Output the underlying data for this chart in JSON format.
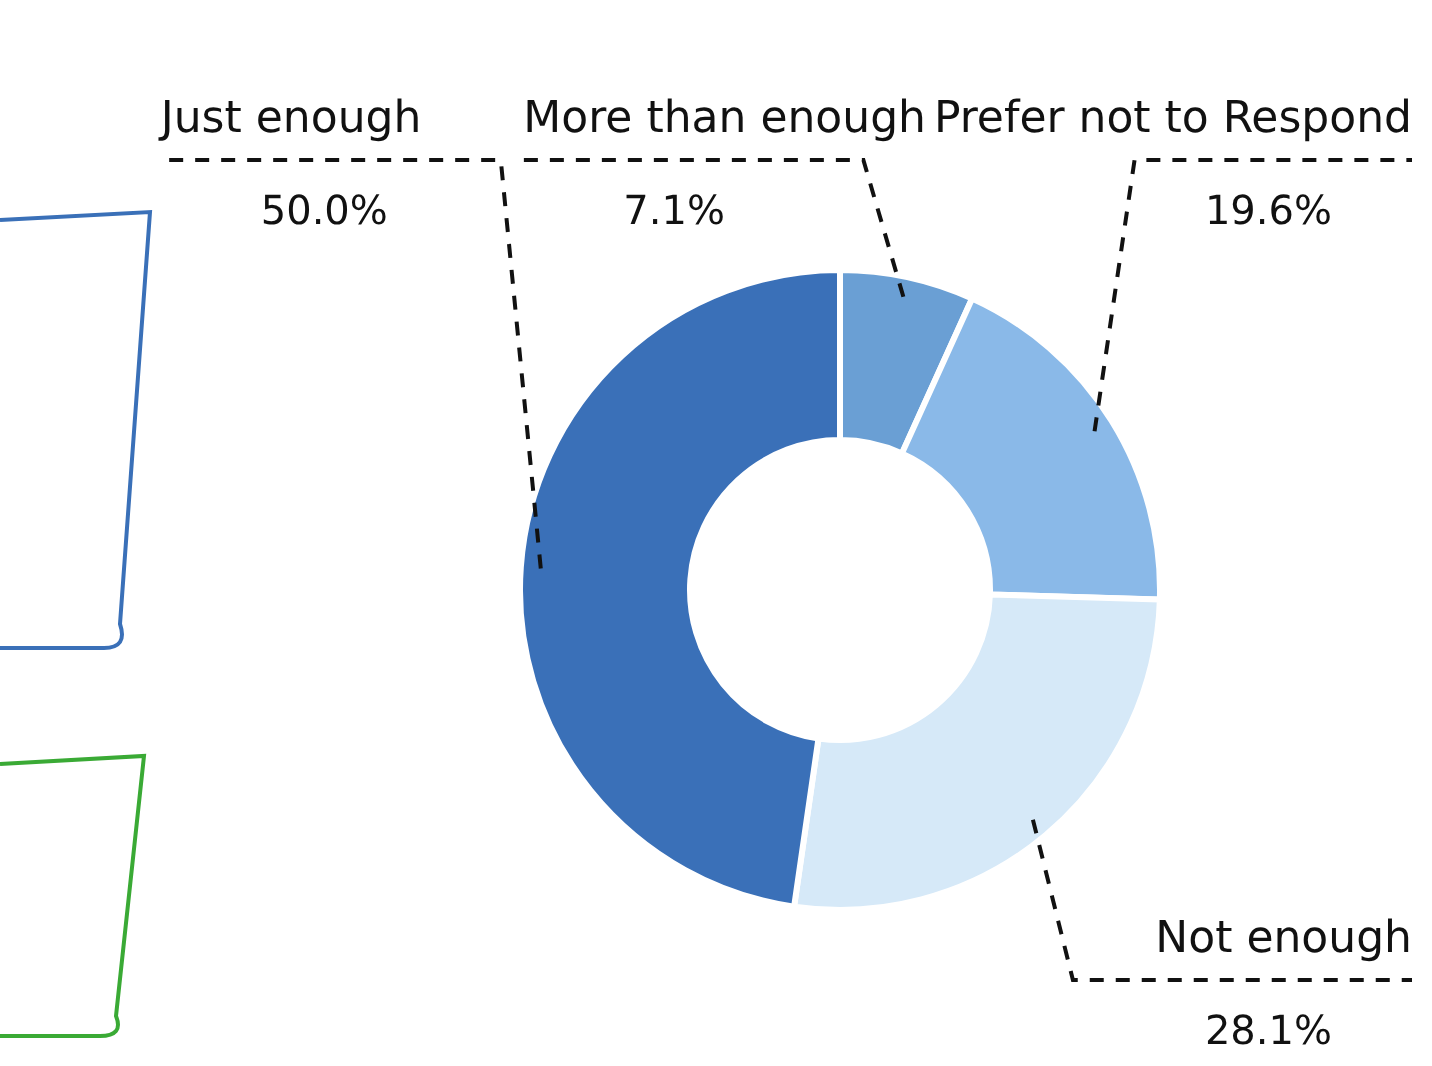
{
  "chart_data": {
    "type": "donut",
    "categories": [
      "More than enough",
      "Prefer not to Respond",
      "Not enough",
      "Just enough"
    ],
    "values": [
      7.1,
      19.6,
      28.1,
      50.0
    ],
    "value_labels": [
      "7.1%",
      "19.6%",
      "28.1%",
      "50.0%"
    ],
    "colors": [
      "#6a9fd4",
      "#8ab9e8",
      "#d6e9f8",
      "#3a70b8"
    ]
  }
}
